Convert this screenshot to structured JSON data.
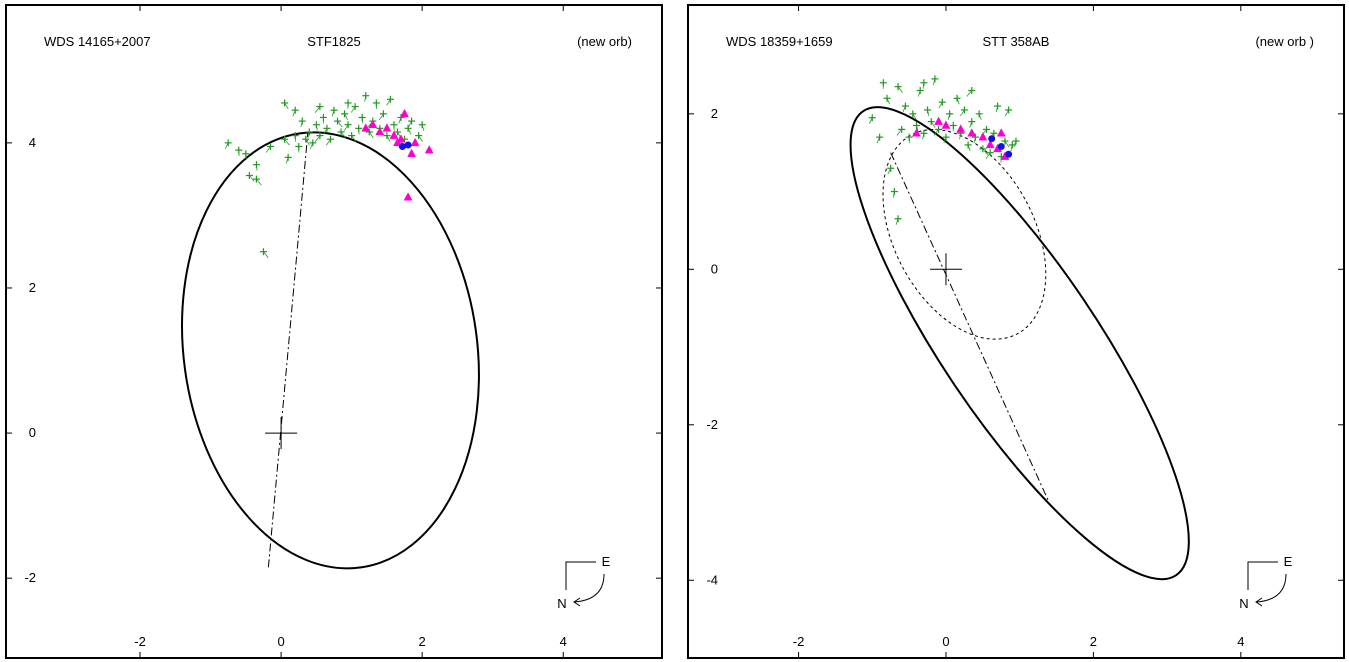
{
  "chart_data": [
    {
      "type": "scatter",
      "header_left": "WDS 14165+2007",
      "title": "STF1825",
      "header_right": "(new orb)",
      "xlim": [
        -3.9,
        5.4
      ],
      "ylim": [
        -3.1,
        5.9
      ],
      "xticks": [
        -2,
        0,
        2,
        4
      ],
      "yticks": [
        -2,
        0,
        2,
        4
      ],
      "xtick_labels": [
        "-2",
        "0",
        "2",
        "4"
      ],
      "ytick_labels": [
        "-2",
        "0",
        "2",
        "4"
      ],
      "orbit": {
        "center": [
          0.7,
          1.14
        ],
        "semi_axes": [
          2.08,
          3.02
        ],
        "rotation_deg": -8
      },
      "line_of_nodes": [
        [
          -0.18,
          -1.85
        ],
        [
          0.38,
          4.15
        ]
      ],
      "origin": [
        0,
        0
      ],
      "orientation": {
        "east": "E",
        "north": "N"
      },
      "series": [
        {
          "marker": "green-plus",
          "values": [
            [
              -0.75,
              4.0
            ],
            [
              -0.6,
              3.9
            ],
            [
              -0.5,
              3.85
            ],
            [
              -0.45,
              3.55
            ],
            [
              -0.35,
              3.7
            ],
            [
              -0.35,
              3.5
            ],
            [
              -0.25,
              2.5
            ],
            [
              -0.15,
              3.95
            ],
            [
              0.05,
              4.05
            ],
            [
              0.05,
              4.55
            ],
            [
              0.1,
              3.8
            ],
            [
              0.2,
              4.1
            ],
            [
              0.25,
              3.95
            ],
            [
              0.3,
              4.3
            ],
            [
              0.35,
              4.05
            ],
            [
              0.4,
              4.15
            ],
            [
              0.45,
              4.0
            ],
            [
              0.5,
              4.25
            ],
            [
              0.55,
              4.1
            ],
            [
              0.6,
              4.35
            ],
            [
              0.65,
              4.2
            ],
            [
              0.7,
              4.05
            ],
            [
              0.75,
              4.45
            ],
            [
              0.8,
              4.3
            ],
            [
              0.85,
              4.15
            ],
            [
              0.9,
              4.4
            ],
            [
              0.95,
              4.25
            ],
            [
              1.0,
              4.1
            ],
            [
              1.05,
              4.5
            ],
            [
              1.1,
              4.2
            ],
            [
              1.15,
              4.35
            ],
            [
              1.2,
              4.65
            ],
            [
              1.25,
              4.15
            ],
            [
              1.3,
              4.3
            ],
            [
              1.35,
              4.55
            ],
            [
              1.4,
              4.2
            ],
            [
              1.45,
              4.4
            ],
            [
              1.5,
              4.1
            ],
            [
              1.55,
              4.6
            ],
            [
              1.6,
              4.25
            ],
            [
              1.65,
              4.15
            ],
            [
              1.7,
              4.35
            ],
            [
              1.75,
              4.05
            ],
            [
              1.8,
              4.2
            ],
            [
              1.85,
              4.3
            ],
            [
              1.95,
              4.1
            ],
            [
              2.0,
              4.25
            ],
            [
              0.2,
              4.45
            ],
            [
              0.55,
              4.5
            ],
            [
              0.95,
              4.55
            ]
          ]
        },
        {
          "marker": "magenta-triangle",
          "values": [
            [
              1.2,
              4.2
            ],
            [
              1.3,
              4.25
            ],
            [
              1.4,
              4.15
            ],
            [
              1.5,
              4.2
            ],
            [
              1.6,
              4.1
            ],
            [
              1.7,
              4.05
            ],
            [
              1.75,
              4.4
            ],
            [
              1.8,
              3.25
            ],
            [
              1.85,
              3.85
            ],
            [
              1.9,
              4.0
            ],
            [
              2.1,
              3.9
            ],
            [
              1.65,
              4.0
            ]
          ]
        },
        {
          "marker": "blue-dot",
          "values": [
            [
              1.72,
              3.95
            ],
            [
              1.8,
              3.97
            ]
          ]
        }
      ]
    },
    {
      "type": "scatter",
      "header_left": "WDS 18359+1659",
      "title": "STT 358AB",
      "header_right": "(new orb )",
      "xlim": [
        -3.5,
        5.4
      ],
      "ylim": [
        -5.0,
        3.4
      ],
      "xticks": [
        -2,
        0,
        2,
        4
      ],
      "yticks": [
        -4,
        -2,
        0,
        2
      ],
      "xtick_labels": [
        "-2",
        "0",
        "2",
        "4"
      ],
      "ytick_labels": [
        "-4",
        "-2",
        "0",
        "2"
      ],
      "orbit": {
        "center": [
          1.0,
          -0.95
        ],
        "semi_axes": [
          1.05,
          3.6
        ],
        "rotation_deg": -34
      },
      "dotted_orbit": {
        "center": [
          0.25,
          0.45
        ],
        "semi_axes": [
          0.95,
          1.45
        ],
        "rotation_deg": -28
      },
      "line_of_nodes": [
        [
          -0.75,
          1.5
        ],
        [
          1.4,
          -3.0
        ]
      ],
      "origin": [
        0,
        0
      ],
      "orientation": {
        "east": "E",
        "north": "N"
      },
      "series": [
        {
          "marker": "green-plus",
          "values": [
            [
              -1.0,
              1.95
            ],
            [
              -0.85,
              2.4
            ],
            [
              -0.8,
              2.2
            ],
            [
              -0.75,
              1.3
            ],
            [
              -0.7,
              1.0
            ],
            [
              -0.65,
              0.65
            ],
            [
              -0.6,
              1.8
            ],
            [
              -0.55,
              2.1
            ],
            [
              -0.5,
              1.7
            ],
            [
              -0.45,
              2.0
            ],
            [
              -0.4,
              1.85
            ],
            [
              -0.35,
              2.3
            ],
            [
              -0.3,
              1.75
            ],
            [
              -0.25,
              2.05
            ],
            [
              -0.2,
              1.9
            ],
            [
              -0.15,
              2.45
            ],
            [
              -0.1,
              1.8
            ],
            [
              -0.05,
              2.15
            ],
            [
              0.0,
              1.7
            ],
            [
              0.05,
              2.0
            ],
            [
              0.1,
              1.85
            ],
            [
              0.15,
              2.2
            ],
            [
              0.2,
              1.75
            ],
            [
              0.25,
              2.05
            ],
            [
              0.3,
              1.6
            ],
            [
              0.35,
              1.9
            ],
            [
              0.4,
              1.7
            ],
            [
              0.45,
              2.0
            ],
            [
              0.5,
              1.55
            ],
            [
              0.55,
              1.8
            ],
            [
              0.6,
              1.5
            ],
            [
              0.65,
              1.75
            ],
            [
              0.7,
              2.1
            ],
            [
              0.75,
              1.45
            ],
            [
              0.8,
              1.65
            ],
            [
              0.85,
              2.05
            ],
            [
              0.9,
              1.6
            ],
            [
              -0.65,
              2.35
            ],
            [
              -0.3,
              2.4
            ],
            [
              0.35,
              2.3
            ],
            [
              -0.9,
              1.7
            ],
            [
              0.95,
              1.65
            ]
          ]
        },
        {
          "marker": "magenta-triangle",
          "values": [
            [
              -0.4,
              1.75
            ],
            [
              0.0,
              1.85
            ],
            [
              0.2,
              1.8
            ],
            [
              0.35,
              1.75
            ],
            [
              0.5,
              1.7
            ],
            [
              0.6,
              1.6
            ],
            [
              0.7,
              1.55
            ],
            [
              0.75,
              1.75
            ],
            [
              0.8,
              1.45
            ],
            [
              -0.1,
              1.9
            ]
          ]
        },
        {
          "marker": "blue-dot",
          "values": [
            [
              0.62,
              1.68
            ],
            [
              0.75,
              1.58
            ],
            [
              0.85,
              1.48
            ]
          ]
        }
      ]
    }
  ]
}
